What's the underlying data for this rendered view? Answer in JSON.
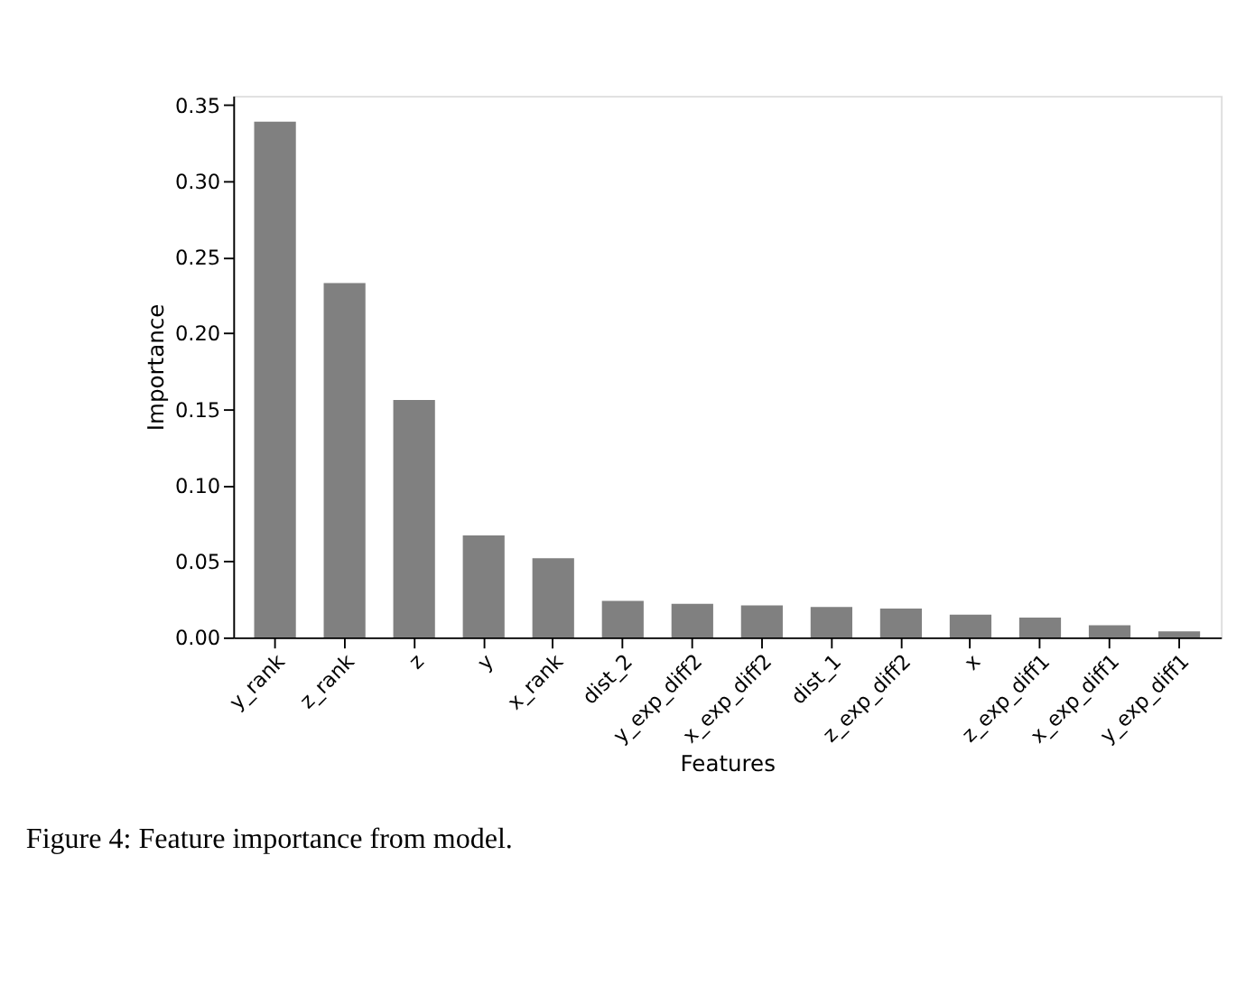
{
  "chart_data": {
    "type": "bar",
    "xlabel": "Features",
    "ylabel": "Importance",
    "categories": [
      "y_rank",
      "z_rank",
      "z",
      "y",
      "x_rank",
      "dist_2",
      "y_exp_diff2",
      "x_exp_diff2",
      "dist_1",
      "z_exp_diff2",
      "x",
      "z_exp_diff1",
      "x_exp_diff1",
      "y_exp_diff1"
    ],
    "values": [
      0.339,
      0.233,
      0.156,
      0.067,
      0.052,
      0.024,
      0.022,
      0.021,
      0.02,
      0.019,
      0.015,
      0.013,
      0.008,
      0.004
    ],
    "color": "#808080",
    "ylim": [
      0,
      0.356
    ],
    "yticks": [
      {
        "value": 0,
        "label": "0.00"
      },
      {
        "value": 0.05,
        "label": "0.05"
      },
      {
        "value": 0.1,
        "label": "0.10"
      },
      {
        "value": 0.15,
        "label": "0.15"
      },
      {
        "value": 0.2,
        "label": "0.20"
      },
      {
        "value": 0.25,
        "label": "0.25"
      },
      {
        "value": 0.3,
        "label": "0.30"
      },
      {
        "value": 0.35,
        "label": "0.35"
      }
    ],
    "grid": false,
    "annotations": [
      "Figure 4: Feature importance from model."
    ]
  }
}
